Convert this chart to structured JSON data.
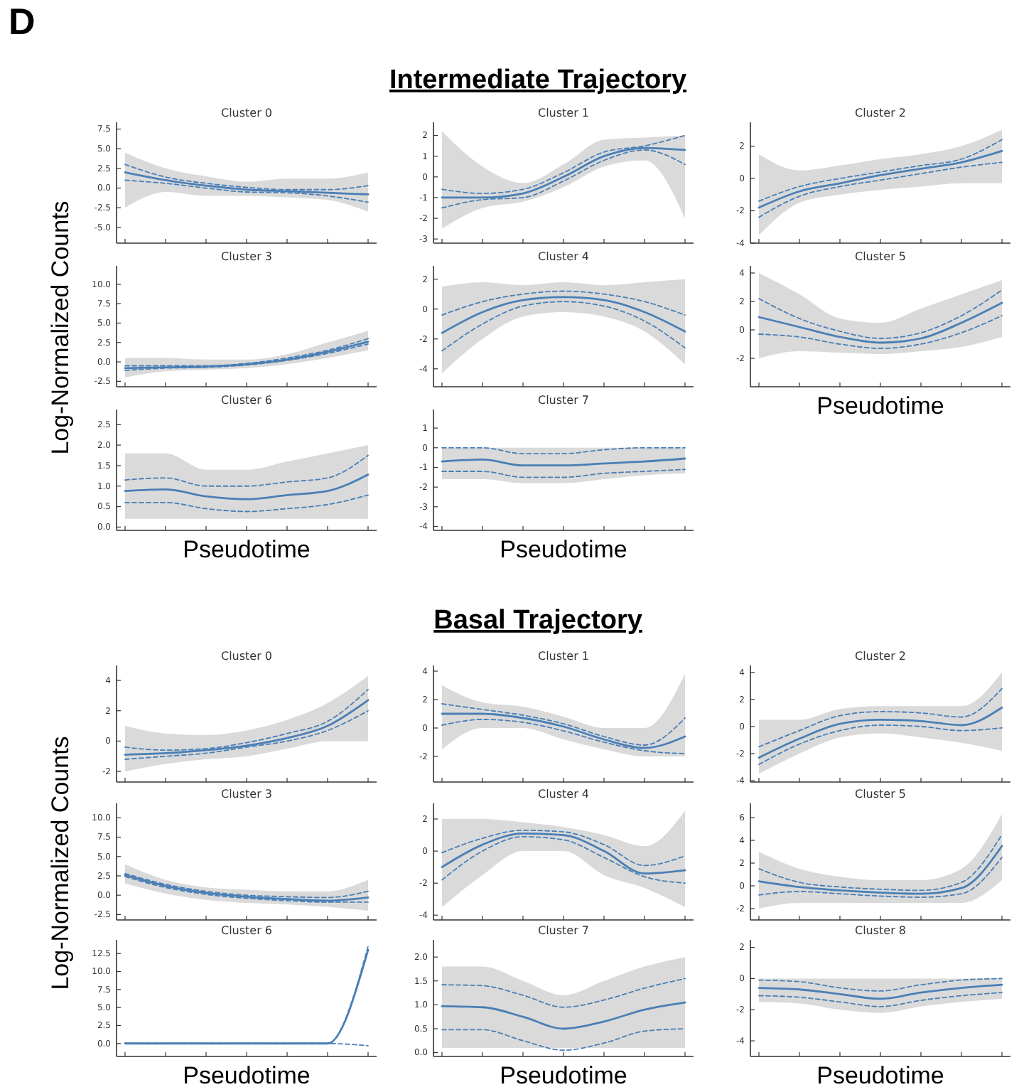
{
  "chart_data": [
    {
      "type": "line",
      "title": "Cluster 0",
      "annotations": [
        "D",
        "Intermediate Trajectory"
      ],
      "categories": [
        null,
        null,
        null,
        null,
        null,
        null,
        null
      ],
      "ylim": [
        -7,
        8
      ],
      "yticks": [
        {
          "value": -5,
          "label": "-5.0"
        },
        -2.5,
        {
          "value": 0,
          "label": "0.0"
        },
        2.5,
        {
          "value": 5,
          "label": "5.0"
        },
        7.5
      ],
      "tick_labels": "y",
      "series": [
        {
          "color": "#4a7fb5",
          "values": [
            2.0,
            1.0,
            0.3,
            -0.2,
            -0.4,
            -0.6,
            -0.8
          ],
          "lower": [
            -2.5,
            -0.5,
            -1,
            -1,
            -1.2,
            -1.5,
            -3
          ],
          "upper": [
            4.5,
            2.5,
            1.5,
            0.8,
            1.2,
            1.2,
            2.0
          ]
        },
        {
          "color": "#4a7fb5",
          "line_style": "dashed",
          "values": [
            3.0,
            1.4,
            0.6,
            0.1,
            -0.2,
            -0.2,
            0.3
          ]
        },
        {
          "color": "#4a7fb5",
          "line_style": "dashed",
          "values": [
            1.0,
            0.6,
            0.0,
            -0.5,
            -0.6,
            -1.0,
            -1.8
          ]
        }
      ]
    },
    {
      "type": "line",
      "title": "Cluster 1",
      "categories": [
        null,
        null,
        null,
        null,
        null,
        null,
        null
      ],
      "ylim": [
        -3.2,
        2.5
      ],
      "yticks": [
        -3,
        -2,
        -1,
        0,
        1,
        2
      ],
      "tick_labels": "y",
      "series": [
        {
          "color": "#4a7fb5",
          "values": [
            -1.0,
            -1.0,
            -0.8,
            0.0,
            1.0,
            1.4,
            1.3
          ],
          "lower": [
            -2.5,
            -1.5,
            -1.2,
            -0.5,
            0.5,
            0.8,
            -2.0
          ],
          "upper": [
            2.2,
            0.5,
            -0.3,
            0.6,
            1.8,
            1.9,
            2.0
          ]
        },
        {
          "color": "#4a7fb5",
          "line_style": "dashed",
          "values": [
            -0.6,
            -0.8,
            -0.6,
            0.2,
            1.2,
            1.5,
            2.0
          ]
        },
        {
          "color": "#4a7fb5",
          "line_style": "dashed",
          "values": [
            -1.5,
            -1.1,
            -1.0,
            -0.2,
            0.8,
            1.3,
            0.6
          ]
        }
      ]
    },
    {
      "type": "line",
      "title": "Cluster 2",
      "categories": [
        null,
        null,
        null,
        null,
        null,
        null,
        null
      ],
      "ylim": [
        -4,
        3.3
      ],
      "yticks": [
        -4,
        -2,
        0,
        2
      ],
      "tick_labels": "y",
      "series": [
        {
          "color": "#4a7fb5",
          "values": [
            -1.8,
            -0.8,
            -0.3,
            0.2,
            0.6,
            1.0,
            1.7
          ],
          "lower": [
            -3.5,
            -1.5,
            -1.0,
            -0.7,
            -0.5,
            -0.3,
            -0.3
          ],
          "upper": [
            1.5,
            0.5,
            0.8,
            1.2,
            1.5,
            2.0,
            3.0
          ]
        },
        {
          "color": "#4a7fb5",
          "line_style": "dashed",
          "values": [
            -1.4,
            -0.5,
            0.0,
            0.4,
            0.8,
            1.2,
            2.4
          ]
        },
        {
          "color": "#4a7fb5",
          "line_style": "dashed",
          "values": [
            -2.4,
            -1.1,
            -0.5,
            -0.1,
            0.3,
            0.7,
            1.0
          ]
        }
      ]
    },
    {
      "type": "line",
      "title": "Cluster 3",
      "ylabel": "Log-Normalized Counts",
      "categories": [
        null,
        null,
        null,
        null,
        null,
        null,
        null
      ],
      "ylim": [
        -3.2,
        12
      ],
      "yticks": [
        -2.5,
        {
          "value": 0,
          "label": "0.0"
        },
        2.5,
        {
          "value": 5,
          "label": "5.0"
        },
        7.5,
        {
          "value": 10,
          "label": "10.0"
        }
      ],
      "tick_labels": "y",
      "series": [
        {
          "color": "#4a7fb5",
          "values": [
            -0.8,
            -0.7,
            -0.6,
            -0.3,
            0.3,
            1.3,
            2.6
          ],
          "lower": [
            -2,
            -1.2,
            -1,
            -0.8,
            -0.3,
            0.5,
            1.5
          ],
          "upper": [
            0.5,
            0.5,
            0.3,
            0.3,
            1.0,
            2.5,
            4.0
          ]
        },
        {
          "color": "#4a7fb5",
          "line_style": "dashed",
          "values": [
            -0.5,
            -0.5,
            -0.5,
            -0.2,
            0.5,
            1.5,
            3.0
          ]
        },
        {
          "color": "#4a7fb5",
          "line_style": "dashed",
          "values": [
            -1.1,
            -0.8,
            -0.7,
            -0.4,
            0.2,
            1.1,
            2.3
          ]
        }
      ]
    },
    {
      "type": "line",
      "title": "Cluster 4",
      "categories": [
        null,
        null,
        null,
        null,
        null,
        null,
        null
      ],
      "ylim": [
        -5.2,
        2.7
      ],
      "yticks": [
        -4,
        -2,
        0,
        2
      ],
      "tick_labels": "y",
      "series": [
        {
          "color": "#4a7fb5",
          "values": [
            -1.6,
            -0.2,
            0.6,
            0.8,
            0.6,
            -0.2,
            -1.5
          ],
          "lower": [
            -4.3,
            -2,
            -0.5,
            -0.2,
            -0.5,
            -1.5,
            -3.7
          ],
          "upper": [
            1.5,
            1.8,
            1.6,
            1.8,
            1.6,
            1.8,
            2.0
          ]
        },
        {
          "color": "#4a7fb5",
          "line_style": "dashed",
          "values": [
            -0.4,
            0.5,
            1.0,
            1.2,
            1.0,
            0.5,
            -0.4
          ]
        },
        {
          "color": "#4a7fb5",
          "line_style": "dashed",
          "values": [
            -2.8,
            -1.0,
            0.2,
            0.5,
            0.2,
            -0.8,
            -2.6
          ]
        }
      ]
    },
    {
      "type": "line",
      "title": "Cluster 5",
      "xlabel": "Pseudotime",
      "categories": [
        null,
        null,
        null,
        null,
        null,
        null,
        null
      ],
      "ylim": [
        -4,
        4.3
      ],
      "yticks": [
        -2,
        0,
        2,
        4
      ],
      "tick_labels": "y",
      "series": [
        {
          "color": "#4a7fb5",
          "values": [
            0.9,
            0.2,
            -0.5,
            -0.9,
            -0.6,
            0.5,
            1.9
          ],
          "lower": [
            -2,
            -1.5,
            -1.6,
            -1.7,
            -1.5,
            -1.2,
            -0.5
          ],
          "upper": [
            4,
            2.5,
            0.8,
            0.5,
            1.5,
            2.5,
            3.5
          ]
        },
        {
          "color": "#4a7fb5",
          "line_style": "dashed",
          "values": [
            2.2,
            0.8,
            -0.1,
            -0.6,
            -0.2,
            1.0,
            2.8
          ]
        },
        {
          "color": "#4a7fb5",
          "line_style": "dashed",
          "values": [
            -0.3,
            -0.5,
            -1,
            -1.3,
            -1.0,
            -0.2,
            1.0
          ]
        }
      ]
    },
    {
      "type": "line",
      "title": "Cluster 6",
      "xlabel": "Pseudotime",
      "categories": [
        null,
        null,
        null,
        null,
        null,
        null,
        null
      ],
      "ylim": [
        -0.08,
        2.8
      ],
      "yticks": [
        {
          "value": 0,
          "label": "0.0"
        },
        0.5,
        {
          "value": 1,
          "label": "1.0"
        },
        1.5,
        {
          "value": 2,
          "label": "2.0"
        },
        2.5
      ],
      "tick_labels": "y",
      "series": [
        {
          "color": "#4a7fb5",
          "values": [
            0.88,
            0.92,
            0.75,
            0.68,
            0.78,
            0.88,
            1.28
          ],
          "lower": [
            0.2,
            0.2,
            0.2,
            0.2,
            0.2,
            0.2,
            0.2
          ],
          "upper": [
            1.8,
            1.8,
            1.4,
            1.4,
            1.6,
            1.8,
            2.0
          ]
        },
        {
          "color": "#4a7fb5",
          "line_style": "dashed",
          "values": [
            1.15,
            1.2,
            1.0,
            1.0,
            1.1,
            1.2,
            1.75
          ]
        },
        {
          "color": "#4a7fb5",
          "line_style": "dashed",
          "values": [
            0.6,
            0.6,
            0.45,
            0.38,
            0.45,
            0.55,
            0.78
          ]
        }
      ]
    },
    {
      "type": "line",
      "title": "Cluster 7",
      "xlabel": "Pseudotime",
      "categories": [
        null,
        null,
        null,
        null,
        null,
        null,
        null
      ],
      "ylim": [
        -4.2,
        1.8
      ],
      "yticks": [
        -4,
        -3,
        -2,
        -1,
        0,
        1
      ],
      "tick_labels": "y",
      "series": [
        {
          "color": "#4a7fb5",
          "values": [
            -0.7,
            -0.6,
            -0.9,
            -0.9,
            -0.8,
            -0.7,
            -0.55
          ],
          "lower": [
            -1.6,
            -1.6,
            -1.8,
            -1.8,
            -1.6,
            -1.4,
            -1.3
          ],
          "upper": [
            0,
            0,
            0,
            0,
            0,
            0,
            0
          ]
        },
        {
          "color": "#4a7fb5",
          "line_style": "dashed",
          "values": [
            0,
            0,
            -0.3,
            -0.3,
            -0.1,
            0,
            0
          ]
        },
        {
          "color": "#4a7fb5",
          "line_style": "dashed",
          "values": [
            -1.2,
            -1.2,
            -1.5,
            -1.5,
            -1.3,
            -1.2,
            -1.1
          ]
        }
      ]
    },
    {
      "type": "line",
      "title": "Cluster 0",
      "annotations": [
        "Basal Trajectory"
      ],
      "categories": [
        null,
        null,
        null,
        null,
        null,
        null,
        null
      ],
      "ylim": [
        -2.7,
        4.8
      ],
      "yticks": [
        -2,
        0,
        2,
        4
      ],
      "tick_labels": "y",
      "series": [
        {
          "color": "#4a7fb5",
          "values": [
            -0.9,
            -0.8,
            -0.6,
            -0.3,
            0.2,
            1.0,
            2.7
          ],
          "lower": [
            -2,
            -1.5,
            -1.2,
            -1,
            -0.5,
            0,
            0
          ],
          "upper": [
            1.0,
            0.5,
            0.4,
            0.7,
            1.4,
            2.5,
            4.3
          ]
        },
        {
          "color": "#4a7fb5",
          "line_style": "dashed",
          "values": [
            -0.4,
            -0.6,
            -0.5,
            -0.1,
            0.5,
            1.3,
            3.4
          ]
        },
        {
          "color": "#4a7fb5",
          "line_style": "dashed",
          "values": [
            -1.2,
            -1.0,
            -0.8,
            -0.4,
            0,
            0.7,
            2.0
          ]
        }
      ]
    },
    {
      "type": "line",
      "title": "Cluster 1",
      "categories": [
        null,
        null,
        null,
        null,
        null,
        null,
        null
      ],
      "ylim": [
        -3.8,
        4.2
      ],
      "yticks": [
        -2,
        0,
        2,
        4
      ],
      "tick_labels": "y",
      "series": [
        {
          "color": "#4a7fb5",
          "values": [
            1.0,
            1.0,
            0.7,
            0.1,
            -0.8,
            -1.4,
            -0.6
          ],
          "lower": [
            -1.5,
            0,
            0,
            -0.8,
            -1.5,
            -2.0,
            -2.0
          ],
          "upper": [
            3,
            1.8,
            1.5,
            0.8,
            0,
            0,
            3.8
          ]
        },
        {
          "color": "#4a7fb5",
          "line_style": "dashed",
          "values": [
            1.7,
            1.3,
            0.9,
            0.3,
            -0.6,
            -1.2,
            0.7
          ]
        },
        {
          "color": "#4a7fb5",
          "line_style": "dashed",
          "values": [
            0.2,
            0.6,
            0.4,
            -0.2,
            -1.0,
            -1.6,
            -1.8
          ]
        }
      ]
    },
    {
      "type": "line",
      "title": "Cluster 2",
      "categories": [
        null,
        null,
        null,
        null,
        null,
        null,
        null
      ],
      "ylim": [
        -4.1,
        4.3
      ],
      "yticks": [
        -4,
        -2,
        0,
        2,
        4
      ],
      "tick_labels": "y",
      "series": [
        {
          "color": "#4a7fb5",
          "values": [
            -2.3,
            -0.9,
            0.2,
            0.5,
            0.4,
            0.1,
            1.4
          ],
          "lower": [
            -3.5,
            -2,
            -0.8,
            -0.5,
            -0.8,
            -1.2,
            -1.8
          ],
          "upper": [
            0.5,
            0.5,
            1.3,
            1.5,
            1.5,
            1.5,
            4.0
          ]
        },
        {
          "color": "#4a7fb5",
          "line_style": "dashed",
          "values": [
            -1.5,
            -0.3,
            0.8,
            1.1,
            1.0,
            0.7,
            2.8
          ]
        },
        {
          "color": "#4a7fb5",
          "line_style": "dashed",
          "values": [
            -2.8,
            -1.3,
            -0.3,
            0.1,
            0,
            -0.3,
            -0.1
          ]
        }
      ]
    },
    {
      "type": "line",
      "title": "Cluster 3",
      "ylabel": "Log-Normalized Counts",
      "categories": [
        null,
        null,
        null,
        null,
        null,
        null,
        null
      ],
      "ylim": [
        -3.2,
        11.5
      ],
      "yticks": [
        -2.5,
        {
          "value": 0,
          "label": "0.0"
        },
        2.5,
        {
          "value": 5,
          "label": "5.0"
        },
        7.5,
        {
          "value": 10,
          "label": "10.0"
        }
      ],
      "tick_labels": "y",
      "series": [
        {
          "color": "#4a7fb5",
          "values": [
            2.6,
            1.2,
            0.3,
            -0.2,
            -0.5,
            -0.7,
            -0.3
          ],
          "lower": [
            1.5,
            0.2,
            -0.6,
            -1,
            -1.2,
            -1.5,
            -2
          ],
          "upper": [
            4,
            2,
            1,
            0.7,
            0.5,
            0.5,
            2
          ]
        },
        {
          "color": "#4a7fb5",
          "line_style": "dashed",
          "values": [
            2.8,
            1.4,
            0.5,
            0.0,
            -0.2,
            -0.3,
            0.5
          ]
        },
        {
          "color": "#4a7fb5",
          "line_style": "dashed",
          "values": [
            2.4,
            1.0,
            0.1,
            -0.4,
            -0.7,
            -0.9,
            -0.9
          ]
        }
      ]
    },
    {
      "type": "line",
      "title": "Cluster 4",
      "categories": [
        null,
        null,
        null,
        null,
        null,
        null,
        null
      ],
      "ylim": [
        -4.3,
        2.8
      ],
      "yticks": [
        -4,
        -2,
        0,
        2
      ],
      "tick_labels": "y",
      "series": [
        {
          "color": "#4a7fb5",
          "values": [
            -1.0,
            0.4,
            1.1,
            1.0,
            0.0,
            -1.4,
            -1.2
          ],
          "lower": [
            -3.5,
            -1.5,
            0,
            0,
            -1.5,
            -2.3,
            -3.5
          ],
          "upper": [
            2,
            2,
            1.8,
            1.5,
            1.0,
            0.3,
            2.5
          ]
        },
        {
          "color": "#4a7fb5",
          "line_style": "dashed",
          "values": [
            -0.1,
            0.8,
            1.3,
            1.2,
            0.4,
            -0.9,
            -0.3
          ]
        },
        {
          "color": "#4a7fb5",
          "line_style": "dashed",
          "values": [
            -1.8,
            0.0,
            0.9,
            0.7,
            -0.4,
            -1.6,
            -2.0
          ]
        }
      ]
    },
    {
      "type": "line",
      "title": "Cluster 5",
      "categories": [
        null,
        null,
        null,
        null,
        null,
        null,
        null
      ],
      "ylim": [
        -3,
        7
      ],
      "yticks": [
        -2,
        0,
        2,
        4,
        6
      ],
      "tick_labels": "y",
      "series": [
        {
          "color": "#4a7fb5",
          "values": [
            0.4,
            -0.1,
            -0.4,
            -0.6,
            -0.7,
            -0.2,
            3.5
          ],
          "lower": [
            -2,
            -1.5,
            -1.5,
            -1.5,
            -1.5,
            -1.5,
            0.5
          ],
          "upper": [
            3,
            1.5,
            0.8,
            0.5,
            0.5,
            1.5,
            6.3
          ]
        },
        {
          "color": "#4a7fb5",
          "line_style": "dashed",
          "values": [
            1.5,
            0.3,
            -0.1,
            -0.3,
            -0.4,
            0.3,
            4.5
          ]
        },
        {
          "color": "#4a7fb5",
          "line_style": "dashed",
          "values": [
            -0.8,
            -0.5,
            -0.7,
            -0.9,
            -1.0,
            -0.7,
            2.5
          ]
        }
      ]
    },
    {
      "type": "line",
      "title": "Cluster 6",
      "xlabel": "Pseudotime",
      "categories": [
        null,
        null,
        null,
        null,
        null,
        null,
        null
      ],
      "ylim": [
        -1.8,
        14
      ],
      "yticks": [
        {
          "value": 0,
          "label": "0.0"
        },
        2.5,
        {
          "value": 5,
          "label": "5.0"
        },
        7.5,
        {
          "value": 10,
          "label": "10.0"
        },
        12.5
      ],
      "tick_labels": "y",
      "series": [
        {
          "color": "#4a7fb5",
          "values": [
            0,
            0,
            0,
            0,
            0,
            0,
            13
          ]
        },
        {
          "color": "#4a7fb5",
          "line_style": "dashed",
          "values": [
            0,
            0,
            0,
            0,
            0,
            0,
            13.5
          ]
        },
        {
          "color": "#4a7fb5",
          "line_style": "dashed",
          "values": [
            0,
            0,
            0,
            0,
            0,
            0,
            -0.3
          ]
        }
      ]
    },
    {
      "type": "line",
      "title": "Cluster 7",
      "xlabel": "Pseudotime",
      "categories": [
        null,
        null,
        null,
        null,
        null,
        null,
        null
      ],
      "ylim": [
        -0.08,
        2.3
      ],
      "yticks": [
        {
          "value": 0,
          "label": "0.0"
        },
        0.5,
        {
          "value": 1,
          "label": "1.0"
        },
        1.5,
        {
          "value": 2,
          "label": "2.0"
        }
      ],
      "tick_labels": "y",
      "series": [
        {
          "color": "#4a7fb5",
          "values": [
            0.97,
            0.95,
            0.75,
            0.5,
            0.65,
            0.9,
            1.05
          ],
          "lower": [
            0.1,
            0.1,
            0.1,
            0.1,
            0.1,
            0.1,
            0.1
          ],
          "upper": [
            1.8,
            1.8,
            1.5,
            1.2,
            1.5,
            1.8,
            2.0
          ]
        },
        {
          "color": "#4a7fb5",
          "line_style": "dashed",
          "values": [
            1.42,
            1.4,
            1.2,
            0.95,
            1.1,
            1.35,
            1.55
          ]
        },
        {
          "color": "#4a7fb5",
          "line_style": "dashed",
          "values": [
            0.48,
            0.48,
            0.25,
            0.05,
            0.2,
            0.45,
            0.5
          ]
        }
      ]
    },
    {
      "type": "line",
      "title": "Cluster 8",
      "xlabel": "Pseudotime",
      "categories": [
        null,
        null,
        null,
        null,
        null,
        null,
        null
      ],
      "ylim": [
        -5,
        2.3
      ],
      "yticks": [
        -4,
        -2,
        0,
        2
      ],
      "tick_labels": "y",
      "series": [
        {
          "color": "#4a7fb5",
          "values": [
            -0.6,
            -0.7,
            -1.0,
            -1.3,
            -0.9,
            -0.6,
            -0.4
          ],
          "lower": [
            -1.5,
            -1.6,
            -2,
            -2.2,
            -1.8,
            -1.5,
            -1.3
          ],
          "upper": [
            0,
            0,
            0,
            0,
            0,
            0,
            0
          ]
        },
        {
          "color": "#4a7fb5",
          "line_style": "dashed",
          "values": [
            -0.1,
            -0.2,
            -0.6,
            -0.8,
            -0.4,
            -0.1,
            0
          ]
        },
        {
          "color": "#4a7fb5",
          "line_style": "dashed",
          "values": [
            -1.1,
            -1.2,
            -1.5,
            -1.8,
            -1.4,
            -1.1,
            -0.9
          ]
        }
      ]
    }
  ]
}
